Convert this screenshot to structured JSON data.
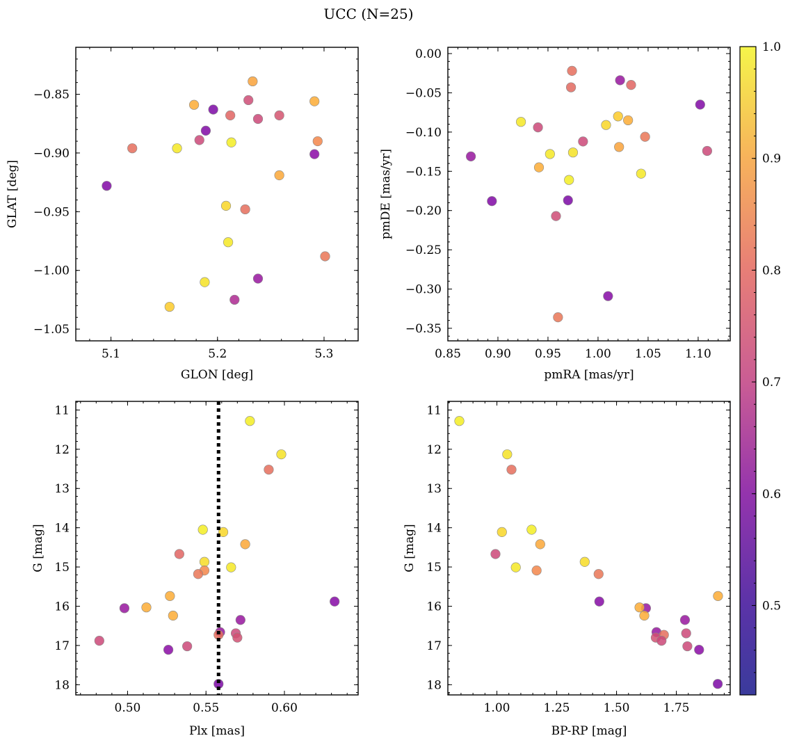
{
  "figure": {
    "title": "UCC (N=25)"
  },
  "colorbar": {
    "range": [
      0.42,
      1.0
    ],
    "ticks": [
      0.5,
      0.6,
      0.7,
      0.8,
      0.9,
      1.0
    ],
    "tick_labels": [
      "0.5",
      "0.6",
      "0.7",
      "0.8",
      "0.9",
      "1.0"
    ],
    "colormap": "plasma"
  },
  "chart_data": [
    {
      "type": "scatter",
      "id": "glon-glat",
      "xlabel": "GLON [deg]",
      "ylabel": "GLAT [deg]",
      "xlim": [
        5.067,
        5.332
      ],
      "ylim": [
        -1.06,
        -0.81
      ],
      "xticks": [
        5.1,
        5.2,
        5.3
      ],
      "xtick_labels": [
        "5.1",
        "5.2",
        "5.3"
      ],
      "yticks": [
        -0.85,
        -0.9,
        -0.95,
        -1.0,
        -1.05
      ],
      "ytick_labels": [
        "−0.85",
        "−0.90",
        "−0.95",
        "−1.00",
        "−1.05"
      ],
      "y_inverted": false,
      "points": [
        {
          "x": 5.096,
          "y": -0.928,
          "c": 0.45
        },
        {
          "x": 5.12,
          "y": -0.896,
          "c": 0.72
        },
        {
          "x": 5.162,
          "y": -0.896,
          "c": 0.97
        },
        {
          "x": 5.155,
          "y": -1.031,
          "c": 0.92
        },
        {
          "x": 5.178,
          "y": -0.859,
          "c": 0.86
        },
        {
          "x": 5.196,
          "y": -0.863,
          "c": 0.44
        },
        {
          "x": 5.183,
          "y": -0.889,
          "c": 0.63
        },
        {
          "x": 5.189,
          "y": -0.881,
          "c": 0.45
        },
        {
          "x": 5.188,
          "y": -1.01,
          "c": 0.96
        },
        {
          "x": 5.208,
          "y": -0.945,
          "c": 0.94
        },
        {
          "x": 5.21,
          "y": -0.976,
          "c": 0.97
        },
        {
          "x": 5.212,
          "y": -0.868,
          "c": 0.7
        },
        {
          "x": 5.213,
          "y": -0.891,
          "c": 0.98
        },
        {
          "x": 5.216,
          "y": -1.025,
          "c": 0.55
        },
        {
          "x": 5.226,
          "y": -0.948,
          "c": 0.72
        },
        {
          "x": 5.229,
          "y": -0.855,
          "c": 0.64
        },
        {
          "x": 5.233,
          "y": -0.839,
          "c": 0.84
        },
        {
          "x": 5.238,
          "y": -1.007,
          "c": 0.5
        },
        {
          "x": 5.238,
          "y": -0.871,
          "c": 0.63
        },
        {
          "x": 5.258,
          "y": -0.868,
          "c": 0.66
        },
        {
          "x": 5.258,
          "y": -0.919,
          "c": 0.85
        },
        {
          "x": 5.291,
          "y": -0.901,
          "c": 0.47
        },
        {
          "x": 5.291,
          "y": -0.856,
          "c": 0.86
        },
        {
          "x": 5.294,
          "y": -0.89,
          "c": 0.78
        },
        {
          "x": 5.301,
          "y": -0.988,
          "c": 0.74
        }
      ]
    },
    {
      "type": "scatter",
      "id": "pm",
      "xlabel": "pmRA [mas/yr]",
      "ylabel": "pmDE [mas/yr]",
      "xlim": [
        0.85,
        1.132
      ],
      "ylim": [
        -0.366,
        0.008
      ],
      "xticks": [
        0.85,
        0.9,
        0.95,
        1.0,
        1.05,
        1.1
      ],
      "xtick_labels": [
        "0.85",
        "0.90",
        "0.95",
        "1.00",
        "1.05",
        "1.10"
      ],
      "yticks": [
        0.0,
        -0.05,
        -0.1,
        -0.15,
        -0.2,
        -0.25,
        -0.3,
        -0.35
      ],
      "ytick_labels": [
        "0.00",
        "−0.05",
        "−0.10",
        "−0.15",
        "−0.20",
        "−0.25",
        "−0.30",
        "−0.35"
      ],
      "y_inverted": false,
      "points": [
        {
          "x": 0.873,
          "y": -0.131,
          "c": 0.5
        },
        {
          "x": 0.894,
          "y": -0.188,
          "c": 0.45
        },
        {
          "x": 0.923,
          "y": -0.087,
          "c": 0.97
        },
        {
          "x": 0.94,
          "y": -0.094,
          "c": 0.63
        },
        {
          "x": 0.941,
          "y": -0.145,
          "c": 0.86
        },
        {
          "x": 0.952,
          "y": -0.128,
          "c": 0.97
        },
        {
          "x": 0.958,
          "y": -0.207,
          "c": 0.64
        },
        {
          "x": 0.96,
          "y": -0.336,
          "c": 0.74
        },
        {
          "x": 0.97,
          "y": -0.187,
          "c": 0.44
        },
        {
          "x": 0.971,
          "y": -0.161,
          "c": 0.98
        },
        {
          "x": 0.973,
          "y": -0.043,
          "c": 0.71
        },
        {
          "x": 0.974,
          "y": -0.022,
          "c": 0.72
        },
        {
          "x": 0.975,
          "y": -0.126,
          "c": 0.96
        },
        {
          "x": 0.985,
          "y": -0.112,
          "c": 0.63
        },
        {
          "x": 1.008,
          "y": -0.091,
          "c": 0.94
        },
        {
          "x": 1.01,
          "y": -0.309,
          "c": 0.46
        },
        {
          "x": 1.02,
          "y": -0.08,
          "c": 0.92
        },
        {
          "x": 1.021,
          "y": -0.119,
          "c": 0.84
        },
        {
          "x": 1.022,
          "y": -0.034,
          "c": 0.5
        },
        {
          "x": 1.03,
          "y": -0.085,
          "c": 0.86
        },
        {
          "x": 1.033,
          "y": -0.04,
          "c": 0.7
        },
        {
          "x": 1.043,
          "y": -0.153,
          "c": 0.97
        },
        {
          "x": 1.047,
          "y": -0.106,
          "c": 0.74
        },
        {
          "x": 1.102,
          "y": -0.065,
          "c": 0.45
        },
        {
          "x": 1.109,
          "y": -0.124,
          "c": 0.63
        }
      ]
    },
    {
      "type": "scatter",
      "id": "plx-g",
      "xlabel": "Plx [mas]",
      "ylabel": "G [mag]",
      "xlim": [
        0.467,
        0.647
      ],
      "ylim": [
        10.78,
        18.26
      ],
      "xticks": [
        0.5,
        0.55,
        0.6
      ],
      "xtick_labels": [
        "0.50",
        "0.55",
        "0.60"
      ],
      "yticks": [
        11,
        12,
        13,
        14,
        15,
        16,
        17,
        18
      ],
      "ytick_labels": [
        "11",
        "12",
        "13",
        "14",
        "15",
        "16",
        "17",
        "18"
      ],
      "y_inverted": true,
      "vline": 0.558,
      "points": [
        {
          "x": 0.578,
          "y": 11.28,
          "c": 0.98
        },
        {
          "x": 0.598,
          "y": 12.13,
          "c": 0.96
        },
        {
          "x": 0.59,
          "y": 12.52,
          "c": 0.72
        },
        {
          "x": 0.548,
          "y": 14.05,
          "c": 0.98
        },
        {
          "x": 0.561,
          "y": 14.11,
          "c": 0.94
        },
        {
          "x": 0.575,
          "y": 14.42,
          "c": 0.85
        },
        {
          "x": 0.533,
          "y": 14.67,
          "c": 0.7
        },
        {
          "x": 0.549,
          "y": 14.87,
          "c": 0.95
        },
        {
          "x": 0.566,
          "y": 15.01,
          "c": 0.97
        },
        {
          "x": 0.549,
          "y": 15.09,
          "c": 0.78
        },
        {
          "x": 0.545,
          "y": 15.18,
          "c": 0.74
        },
        {
          "x": 0.527,
          "y": 15.74,
          "c": 0.86
        },
        {
          "x": 0.632,
          "y": 15.88,
          "c": 0.46
        },
        {
          "x": 0.498,
          "y": 16.05,
          "c": 0.5
        },
        {
          "x": 0.512,
          "y": 16.03,
          "c": 0.86
        },
        {
          "x": 0.529,
          "y": 16.24,
          "c": 0.86
        },
        {
          "x": 0.572,
          "y": 16.35,
          "c": 0.5
        },
        {
          "x": 0.559,
          "y": 16.66,
          "c": 0.5
        },
        {
          "x": 0.558,
          "y": 16.73,
          "c": 0.72
        },
        {
          "x": 0.569,
          "y": 16.69,
          "c": 0.63
        },
        {
          "x": 0.57,
          "y": 16.8,
          "c": 0.65
        },
        {
          "x": 0.482,
          "y": 16.88,
          "c": 0.63
        },
        {
          "x": 0.538,
          "y": 17.02,
          "c": 0.63
        },
        {
          "x": 0.526,
          "y": 17.11,
          "c": 0.47
        },
        {
          "x": 0.558,
          "y": 17.98,
          "c": 0.44
        }
      ]
    },
    {
      "type": "scatter",
      "id": "bprp-g",
      "xlabel": "BP-RP [mag]",
      "ylabel": "G [mag]",
      "xlim": [
        0.795,
        1.975
      ],
      "ylim": [
        10.78,
        18.26
      ],
      "xticks": [
        1.0,
        1.25,
        1.5,
        1.75
      ],
      "xtick_labels": [
        "1.00",
        "1.25",
        "1.50",
        "1.75"
      ],
      "yticks": [
        11,
        12,
        13,
        14,
        15,
        16,
        17,
        18
      ],
      "ytick_labels": [
        "11",
        "12",
        "13",
        "14",
        "15",
        "16",
        "17",
        "18"
      ],
      "y_inverted": true,
      "points": [
        {
          "x": 0.843,
          "y": 11.28,
          "c": 0.98
        },
        {
          "x": 1.043,
          "y": 12.13,
          "c": 0.96
        },
        {
          "x": 1.061,
          "y": 12.52,
          "c": 0.72
        },
        {
          "x": 1.145,
          "y": 14.05,
          "c": 0.98
        },
        {
          "x": 1.021,
          "y": 14.11,
          "c": 0.94
        },
        {
          "x": 1.181,
          "y": 14.42,
          "c": 0.85
        },
        {
          "x": 0.994,
          "y": 14.67,
          "c": 0.63
        },
        {
          "x": 1.367,
          "y": 14.87,
          "c": 0.95
        },
        {
          "x": 1.079,
          "y": 15.01,
          "c": 0.97
        },
        {
          "x": 1.166,
          "y": 15.09,
          "c": 0.78
        },
        {
          "x": 1.425,
          "y": 15.18,
          "c": 0.74
        },
        {
          "x": 1.924,
          "y": 15.74,
          "c": 0.86
        },
        {
          "x": 1.428,
          "y": 15.88,
          "c": 0.46
        },
        {
          "x": 1.623,
          "y": 16.05,
          "c": 0.5
        },
        {
          "x": 1.596,
          "y": 16.03,
          "c": 0.86
        },
        {
          "x": 1.616,
          "y": 16.24,
          "c": 0.86
        },
        {
          "x": 1.786,
          "y": 16.35,
          "c": 0.5
        },
        {
          "x": 1.667,
          "y": 16.66,
          "c": 0.5
        },
        {
          "x": 1.698,
          "y": 16.73,
          "c": 0.72
        },
        {
          "x": 1.791,
          "y": 16.69,
          "c": 0.63
        },
        {
          "x": 1.664,
          "y": 16.8,
          "c": 0.65
        },
        {
          "x": 1.688,
          "y": 16.88,
          "c": 0.63
        },
        {
          "x": 1.796,
          "y": 17.02,
          "c": 0.63
        },
        {
          "x": 1.845,
          "y": 17.11,
          "c": 0.47
        },
        {
          "x": 1.923,
          "y": 17.98,
          "c": 0.44
        }
      ]
    }
  ]
}
